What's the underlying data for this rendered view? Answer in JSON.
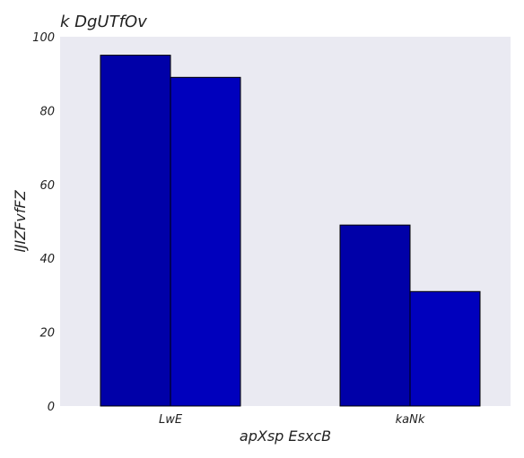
{
  "chart_data": {
    "type": "bar",
    "title": "k  DgUTfOv",
    "xlabel": "apXsp EsxcB",
    "ylabel": "lJIZFvfFZ",
    "categories": [
      "LwE",
      "kaNk"
    ],
    "series": [
      {
        "values": [
          95,
          49
        ]
      },
      {
        "values": [
          89,
          31
        ]
      }
    ],
    "ylim": [
      0,
      100
    ],
    "yticks": [
      0,
      20,
      40,
      60,
      80,
      100
    ],
    "grid": false,
    "legend": "none"
  },
  "colors": {
    "background": "#eaeaf2",
    "series": [
      "#0000a8",
      "#0000bd"
    ],
    "bar_edge": "#000000"
  }
}
